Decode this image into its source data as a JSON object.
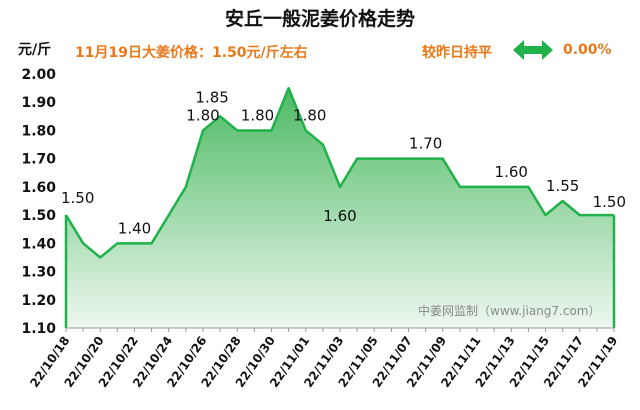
{
  "header": {
    "title": "安丘一般泥姜价格走势",
    "unit": "元/斤",
    "subtitle": "11月19日大姜价格：1.50元/斤左右",
    "compare_label": "较昨日持平",
    "compare_value": "0.00%",
    "compare_icon": "double-arrow-icon",
    "watermark": "中姜网监制（www.jiang7.com）"
  },
  "colors": {
    "line": "#1fb24a",
    "fill_top": "#4cba63",
    "fill_bottom": "#eef7ef",
    "accent": "#e8791a",
    "arrow": "#1fb24a"
  },
  "chart_data": {
    "type": "area",
    "title": "安丘一般泥姜价格走势",
    "ylabel": "元/斤",
    "xlabel": "",
    "ylim": [
      1.1,
      2.0
    ],
    "yticks": [
      "1.10",
      "1.20",
      "1.30",
      "1.40",
      "1.50",
      "1.60",
      "1.70",
      "1.80",
      "1.90",
      "2.00"
    ],
    "xtick_labels": [
      "22/10/18",
      "22/10/20",
      "22/10/22",
      "22/10/24",
      "22/10/26",
      "22/10/28",
      "22/10/30",
      "22/11/01",
      "22/11/03",
      "22/11/05",
      "22/11/07",
      "22/11/09",
      "22/11/11",
      "22/11/13",
      "22/11/15",
      "22/11/17",
      "22/11/19"
    ],
    "x": [
      "22/10/18",
      "22/10/19",
      "22/10/20",
      "22/10/21",
      "22/10/22",
      "22/10/23",
      "22/10/24",
      "22/10/25",
      "22/10/26",
      "22/10/27",
      "22/10/28",
      "22/10/29",
      "22/10/30",
      "22/10/31",
      "22/11/01",
      "22/11/02",
      "22/11/03",
      "22/11/04",
      "22/11/05",
      "22/11/06",
      "22/11/07",
      "22/11/08",
      "22/11/09",
      "22/11/10",
      "22/11/11",
      "22/11/12",
      "22/11/13",
      "22/11/14",
      "22/11/15",
      "22/11/16",
      "22/11/17",
      "22/11/18",
      "22/11/19"
    ],
    "series": [
      {
        "values": [
          1.5,
          1.4,
          1.35,
          1.4,
          1.4,
          1.4,
          1.5,
          1.6,
          1.8,
          1.85,
          1.8,
          1.8,
          1.8,
          1.95,
          1.8,
          1.75,
          1.6,
          1.7,
          1.7,
          1.7,
          1.7,
          1.7,
          1.7,
          1.6,
          1.6,
          1.6,
          1.6,
          1.6,
          1.5,
          1.55,
          1.5,
          1.5,
          1.5
        ]
      }
    ],
    "data_labels": [
      {
        "index": 0,
        "text": "1.50"
      },
      {
        "index": 4,
        "text": "1.40"
      },
      {
        "index": 8,
        "text": "1.80"
      },
      {
        "index": 9,
        "text": "1.85"
      },
      {
        "index": 12,
        "text": "1.80"
      },
      {
        "index": 14,
        "text": "1.80"
      },
      {
        "index": 16,
        "text": "1.60"
      },
      {
        "index": 21,
        "text": "1.70"
      },
      {
        "index": 26,
        "text": "1.60"
      },
      {
        "index": 29,
        "text": "1.55"
      },
      {
        "index": 32,
        "text": "1.50"
      }
    ],
    "grid": false
  }
}
